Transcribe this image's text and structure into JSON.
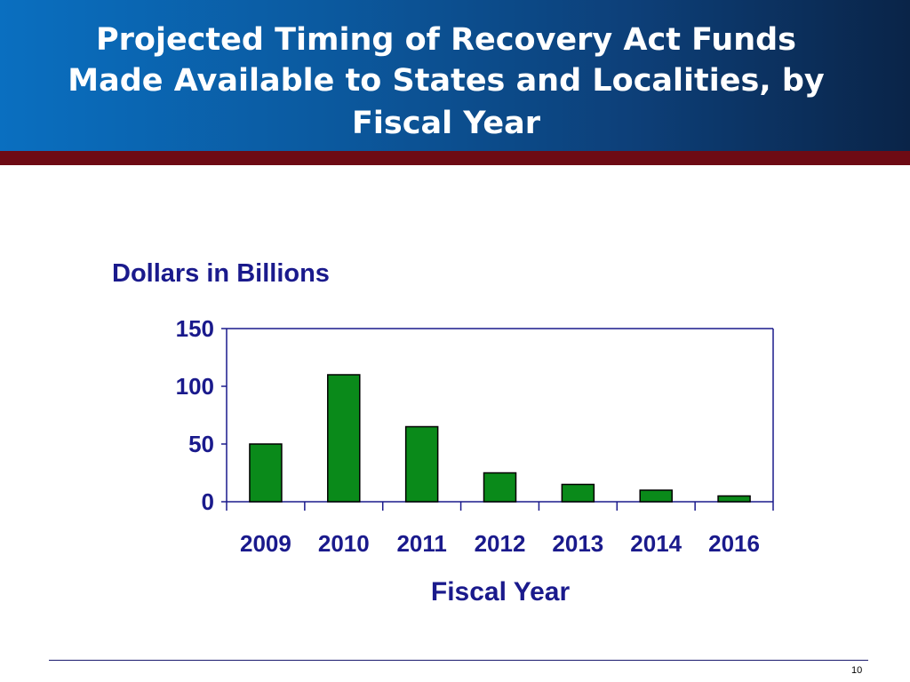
{
  "slide": {
    "title_line1": "Projected Timing of Recovery Act Funds",
    "title_line2": "Made Available to States and Localities, by",
    "title_line3": "Fiscal Year",
    "page_number": "10"
  },
  "colors": {
    "header_start": "#0a6fc0",
    "header_end": "#0a2448",
    "header_band": "#6e0b14",
    "label_text": "#1a1a8c",
    "bar_fill": "#0a8a1a",
    "axis": "#1a1a8c"
  },
  "chart_data": {
    "type": "bar",
    "title": "",
    "categories": [
      "2009",
      "2010",
      "2011",
      "2012",
      "2013",
      "2014",
      "2016"
    ],
    "values": [
      50,
      110,
      65,
      25,
      15,
      10,
      5
    ],
    "ylabel": "Dollars in Billions",
    "xlabel": "Fiscal Year",
    "ylim": [
      0,
      150
    ],
    "yticks": [
      0,
      50,
      100,
      150
    ],
    "grid": false,
    "legend": "none"
  }
}
